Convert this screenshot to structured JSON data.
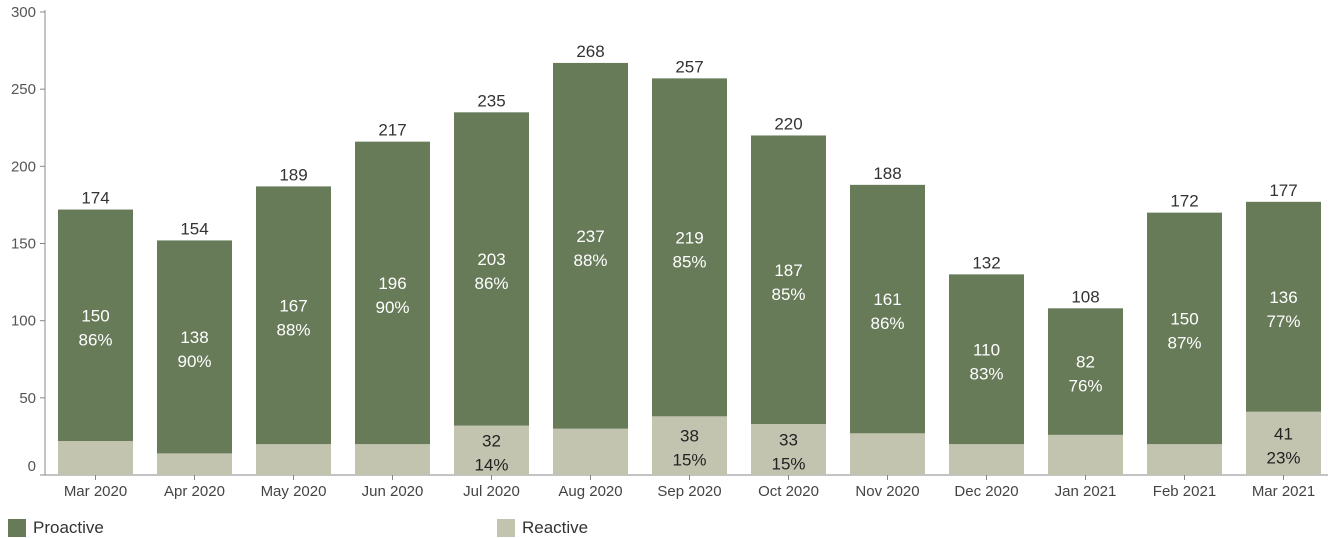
{
  "chart_data": {
    "type": "bar",
    "stacked": true,
    "categories": [
      "Mar 2020",
      "Apr 2020",
      "May 2020",
      "Jun 2020",
      "Jul 2020",
      "Aug 2020",
      "Sep 2020",
      "Oct 2020",
      "Nov 2020",
      "Dec 2020",
      "Jan 2021",
      "Feb 2021",
      "Mar 2021"
    ],
    "totals": [
      174,
      154,
      189,
      217,
      235,
      268,
      257,
      220,
      188,
      132,
      108,
      172,
      177
    ],
    "series": [
      {
        "name": "Reactive",
        "color": "#c3c4b0",
        "values": [
          22,
          14,
          20,
          20,
          32,
          30,
          38,
          33,
          27,
          20,
          26,
          20,
          41
        ],
        "labels": [
          "",
          "",
          "",
          "",
          "32",
          "",
          "38",
          "33",
          "",
          "",
          "",
          "",
          "41"
        ],
        "pct_labels": [
          "",
          "",
          "",
          "",
          "14%",
          "",
          "15%",
          "15%",
          "",
          "",
          "",
          "",
          "23%"
        ]
      },
      {
        "name": "Proactive",
        "color": "#677b59",
        "values": [
          150,
          138,
          167,
          196,
          203,
          237,
          219,
          187,
          161,
          110,
          82,
          150,
          136
        ],
        "labels": [
          "150",
          "138",
          "167",
          "196",
          "203",
          "237",
          "219",
          "187",
          "161",
          "110",
          "82",
          "150",
          "136"
        ],
        "pct_labels": [
          "86%",
          "90%",
          "88%",
          "90%",
          "86%",
          "88%",
          "85%",
          "85%",
          "86%",
          "83%",
          "76%",
          "87%",
          "77%"
        ]
      }
    ],
    "y_ticks": [
      "0",
      "50",
      "100",
      "150",
      "200",
      "250",
      "300"
    ],
    "ylim": [
      0,
      300
    ],
    "title": "",
    "xlabel": "",
    "ylabel": "",
    "legend_position": "bottom-left",
    "grid": false
  }
}
